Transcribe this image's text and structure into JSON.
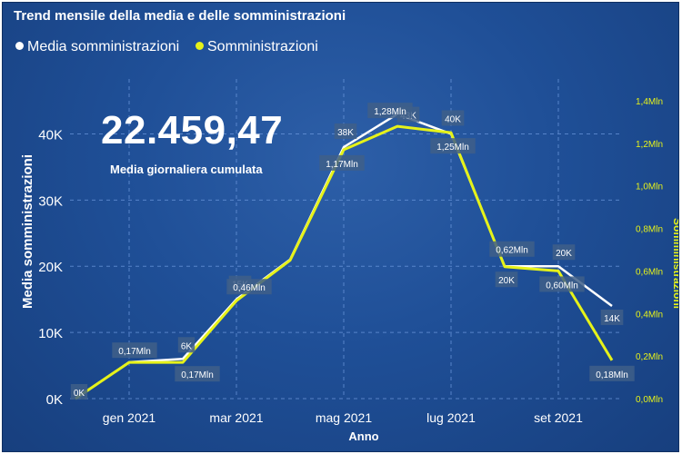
{
  "title": "Trend mensile della media e delle somministrazioni",
  "kpi": {
    "value": "22.459,47",
    "label": "Media giornaliera cumulata"
  },
  "colors": {
    "media": "#ffffff",
    "somministrazioni": "#e6f219",
    "background": "#1f4f97",
    "label_box": "#3f5f88"
  },
  "chart_data": {
    "type": "line",
    "title": "Trend mensile della media e delle somministrazioni",
    "xlabel": "Anno",
    "ylabel": "Media somministrazioni",
    "y2label": "Somministrazioni",
    "x_ticks": [
      "gen 2021",
      "mar 2021",
      "mag 2021",
      "lug 2021",
      "set 2021"
    ],
    "y_ticks": [
      "0K",
      "10K",
      "20K",
      "30K",
      "40K"
    ],
    "y2_ticks": [
      "0,0Mln",
      "0,2Mln",
      "0,4Mln",
      "0,6Mln",
      "0,8Mln",
      "1,0Mln",
      "1,2Mln",
      "1,4Mln"
    ],
    "ylim": [
      0,
      45000
    ],
    "y2lim": [
      0,
      1.4
    ],
    "grid": true,
    "legend_position": "top-left",
    "x": [
      "2020-12",
      "2021-01",
      "2021-02",
      "2021-03",
      "2021-04",
      "2021-05",
      "2021-06",
      "2021-07",
      "2021-08",
      "2021-09",
      "2021-10"
    ],
    "series": [
      {
        "name": "Media somministrazioni",
        "axis": "left",
        "values": [
          0,
          5500,
          6000,
          15000,
          21000,
          38000,
          43000,
          40000,
          20000,
          20000,
          14000
        ],
        "labels": [
          "0K",
          "",
          "6K",
          "15K",
          "",
          "38K",
          "43K",
          "40K",
          "20K",
          "20K",
          "14K"
        ]
      },
      {
        "name": "Somministrazioni",
        "axis": "right",
        "values": [
          0,
          0.17,
          0.17,
          0.46,
          0.65,
          1.17,
          1.28,
          1.25,
          0.62,
          0.6,
          0.18
        ],
        "labels": [
          "",
          "0,17Mln",
          "0,17Mln",
          "0,46Mln",
          "",
          "1,17Mln",
          "1,28Mln",
          "1,25Mln",
          "0,62Mln",
          "0,60Mln",
          "0,18Mln"
        ]
      }
    ]
  }
}
